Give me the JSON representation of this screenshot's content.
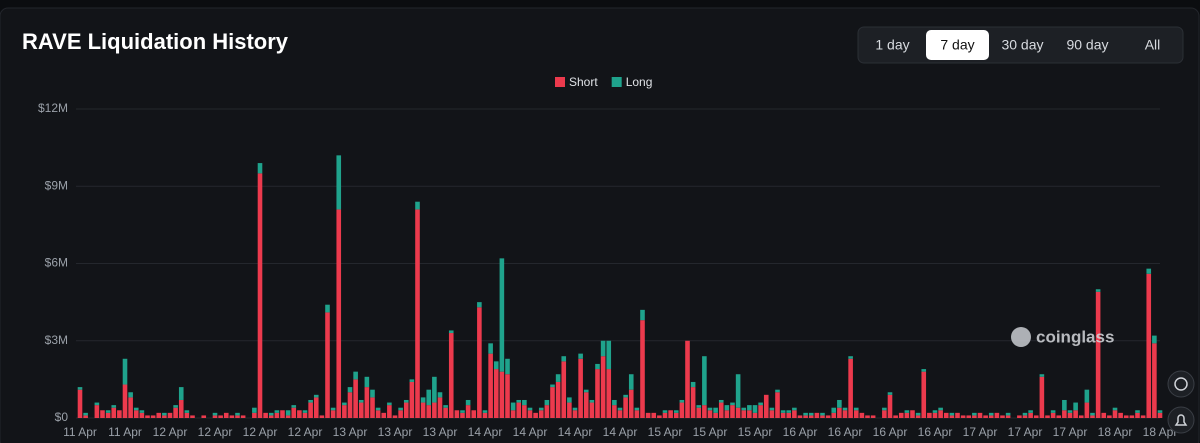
{
  "chart_data": {
    "type": "stacked_bar",
    "title": "RAVE Liquidation History",
    "ranges": [
      "1 day",
      "7 day",
      "30 day",
      "90 day",
      "All"
    ],
    "active_range": "7 day",
    "watermark": "coinglass",
    "ylim": [
      0,
      12
    ],
    "yticks": [
      {
        "value": 0,
        "label": "$0"
      },
      {
        "value": 3,
        "label": "$3M"
      },
      {
        "value": 6,
        "label": "$6M"
      },
      {
        "value": 9,
        "label": "$9M"
      },
      {
        "value": 12,
        "label": "$12M"
      }
    ],
    "grid": true,
    "categories": [
      "11 Apr",
      null,
      null,
      null,
      null,
      null,
      null,
      null,
      "11 Apr",
      null,
      null,
      null,
      null,
      null,
      null,
      null,
      "12 Apr",
      null,
      null,
      null,
      null,
      null,
      null,
      null,
      "12 Apr",
      null,
      null,
      null,
      null,
      null,
      null,
      null,
      "12 Apr",
      null,
      null,
      null,
      null,
      null,
      null,
      null,
      "12 Apr",
      null,
      null,
      null,
      null,
      null,
      null,
      null,
      "13 Apr",
      null,
      null,
      null,
      null,
      null,
      null,
      null,
      "13 Apr",
      null,
      null,
      null,
      null,
      null,
      null,
      null,
      "13 Apr",
      null,
      null,
      null,
      null,
      null,
      null,
      null,
      "14 Apr",
      null,
      null,
      null,
      null,
      null,
      null,
      null,
      "14 Apr",
      null,
      null,
      null,
      null,
      null,
      null,
      null,
      "14 Apr",
      null,
      null,
      null,
      null,
      null,
      null,
      null,
      "14 Apr",
      null,
      null,
      null,
      null,
      null,
      null,
      null,
      "15 Apr",
      null,
      null,
      null,
      null,
      null,
      null,
      null,
      "15 Apr",
      null,
      null,
      null,
      null,
      null,
      null,
      null,
      "15 Apr",
      null,
      null,
      null,
      null,
      null,
      null,
      null,
      "16 Apr",
      null,
      null,
      null,
      null,
      null,
      null,
      null,
      "16 Apr",
      null,
      null,
      null,
      null,
      null,
      null,
      null,
      "16 Apr",
      null,
      null,
      null,
      null,
      null,
      null,
      null,
      "16 Apr",
      null,
      null,
      null,
      null,
      null,
      null,
      null,
      "17 Apr",
      null,
      null,
      null,
      null,
      null,
      null,
      null,
      "17 Apr",
      null,
      null,
      null,
      null,
      null,
      null,
      null,
      "17 Apr",
      null,
      null,
      null,
      null,
      null,
      null,
      null,
      "18 Apr",
      null,
      null,
      null,
      null,
      null,
      null,
      null,
      "18 Apr"
    ],
    "series": [
      {
        "name": "Short",
        "color": "#ec3a4d",
        "values": [
          1.1,
          0.1,
          0,
          0.5,
          0.3,
          0.2,
          0.4,
          0.3,
          1.3,
          0.8,
          0.3,
          0.2,
          0.1,
          0.1,
          0.2,
          0.1,
          0.2,
          0.4,
          0.7,
          0.2,
          0.1,
          0,
          0.1,
          0,
          0.1,
          0.1,
          0.2,
          0.1,
          0.1,
          0.1,
          0,
          0.2,
          9.5,
          0.2,
          0.1,
          0.2,
          0.3,
          0.1,
          0.4,
          0.3,
          0.2,
          0.6,
          0.8,
          0.1,
          4.1,
          0.3,
          8.1,
          0.5,
          1.0,
          1.5,
          0.6,
          1.2,
          0.8,
          0.3,
          0.2,
          0.5,
          0.1,
          0.3,
          0.6,
          1.4,
          8.1,
          0.6,
          0.5,
          0.6,
          0.8,
          0.4,
          3.3,
          0.3,
          0.2,
          0.5,
          0.3,
          4.3,
          0.2,
          2.5,
          1.9,
          1.8,
          1.7,
          0.3,
          0.6,
          0.5,
          0.3,
          0.2,
          0.3,
          0.5,
          1.2,
          1.4,
          2.2,
          0.6,
          0.3,
          2.3,
          1.0,
          0.6,
          1.9,
          2.4,
          1.9,
          0.5,
          0.3,
          0.8,
          1.1,
          0.3,
          3.8,
          0.2,
          0.2,
          0.1,
          0.2,
          0.3,
          0.2,
          0.6,
          3.0,
          1.2,
          0.4,
          0.5,
          0.3,
          0.2,
          0.6,
          0.3,
          0.5,
          0.4,
          0.3,
          0.3,
          0.2,
          0.5,
          0.9,
          0.3,
          1.0,
          0.2,
          0.2,
          0.3,
          0.1,
          0.1,
          0.1,
          0.2,
          0.1,
          0.1,
          0.2,
          0.4,
          0.3,
          2.3,
          0.3,
          0.2,
          0.1,
          0.1,
          0,
          0.3,
          0.9,
          0.1,
          0.2,
          0.2,
          0.3,
          0.1,
          1.8,
          0.2,
          0.2,
          0.3,
          0.2,
          0.1,
          0.2,
          0.1,
          0.1,
          0.1,
          0.2,
          0.1,
          0.1,
          0.2,
          0.1,
          0.1,
          0,
          0.1,
          0.1,
          0.2,
          0.1,
          1.6,
          0.1,
          0.2,
          0.1,
          0.3,
          0.2,
          0.3,
          0.1,
          0.6,
          0.1,
          4.9,
          0.2,
          0.1,
          0.3,
          0.2,
          0.1,
          0.1,
          0.2,
          0.1,
          5.6,
          2.9,
          0.2
        ]
      },
      {
        "name": "Long",
        "color": "#1fa38c",
        "values": [
          0.1,
          0.1,
          0,
          0.1,
          0,
          0.1,
          0.1,
          0,
          1.0,
          0.2,
          0.1,
          0.1,
          0,
          0,
          0,
          0.1,
          0,
          0.1,
          0.5,
          0.1,
          0,
          0,
          0,
          0,
          0.1,
          0,
          0,
          0,
          0.1,
          0,
          0,
          0.2,
          0.4,
          0,
          0.1,
          0.1,
          0,
          0.2,
          0.1,
          0,
          0.1,
          0.1,
          0.1,
          0,
          0.3,
          0.1,
          2.1,
          0.1,
          0.2,
          0.3,
          0.1,
          0.4,
          0.3,
          0.1,
          0,
          0.1,
          0,
          0.1,
          0.1,
          0.1,
          0.3,
          0.2,
          0.6,
          1.0,
          0.2,
          0.1,
          0.1,
          0,
          0.1,
          0.2,
          0,
          0.2,
          0.1,
          0.4,
          0.3,
          4.4,
          0.6,
          0.3,
          0.1,
          0.2,
          0.1,
          0,
          0.1,
          0.2,
          0.1,
          0.3,
          0.2,
          0.2,
          0.1,
          0.2,
          0.1,
          0.1,
          0.2,
          0.6,
          1.1,
          0.2,
          0.1,
          0.1,
          0.6,
          0.1,
          0.4,
          0,
          0,
          0,
          0.1,
          0,
          0.1,
          0.1,
          0,
          0.2,
          0.1,
          1.9,
          0.1,
          0.2,
          0.1,
          0.2,
          0.1,
          1.3,
          0.1,
          0.2,
          0.3,
          0.1,
          0,
          0.1,
          0.1,
          0.1,
          0.1,
          0.1,
          0,
          0.1,
          0.1,
          0,
          0.1,
          0,
          0.2,
          0.3,
          0.1,
          0.1,
          0.1,
          0,
          0,
          0,
          0,
          0.1,
          0.1,
          0,
          0,
          0.1,
          0,
          0.1,
          0.1,
          0,
          0.1,
          0.1,
          0,
          0.1,
          0,
          0,
          0,
          0.1,
          0,
          0,
          0.1,
          0,
          0,
          0.1,
          0,
          0,
          0.1,
          0.1,
          0,
          0.1,
          0,
          0.1,
          0,
          0.4,
          0.1,
          0.3,
          0,
          0.5,
          0.1,
          0.1,
          0,
          0,
          0.1,
          0,
          0,
          0,
          0.1,
          0,
          0.2,
          0.3,
          0.1
        ]
      }
    ]
  }
}
